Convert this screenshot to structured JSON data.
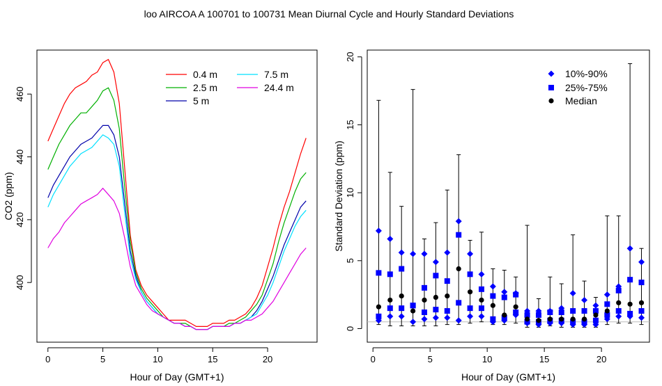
{
  "title": "loo   AIRCOA A   100701 to 100731   Mean Diurnal Cycle and Hourly Standard Deviations",
  "colors": {
    "0.4 m": "#ff0000",
    "2.5 m": "#00b000",
    "5 m": "#0000aa",
    "7.5 m": "#00e0ff",
    "24.4 m": "#e000e0",
    "p10_90": "#0000ff",
    "p25_75": "#0000ff",
    "median": "#000000",
    "reference_line": "#bbbbbb"
  },
  "chart_data": [
    {
      "type": "line",
      "xlabel": "Hour of Day (GMT+1)",
      "ylabel": "CO2 (ppm)",
      "xlim": [
        -1,
        24.5
      ],
      "ylim": [
        381,
        474
      ],
      "xticks": [
        0,
        5,
        10,
        15,
        20
      ],
      "yticks": [
        400,
        420,
        440,
        460
      ],
      "legend_position": "top-right",
      "x": [
        0,
        0.5,
        1,
        1.5,
        2,
        2.5,
        3,
        3.5,
        4,
        4.5,
        5,
        5.5,
        6,
        6.5,
        7,
        7.5,
        8,
        8.5,
        9,
        9.5,
        10,
        10.5,
        11,
        11.5,
        12,
        12.5,
        13,
        13.5,
        14,
        14.5,
        15,
        15.5,
        16,
        16.5,
        17,
        17.5,
        18,
        18.5,
        19,
        19.5,
        20,
        20.5,
        21,
        21.5,
        22,
        22.5,
        23,
        23.5
      ],
      "series": [
        {
          "name": "0.4 m",
          "values": [
            445,
            449,
            453,
            457,
            460,
            462,
            463,
            464,
            466,
            467,
            470,
            471,
            467,
            457,
            436,
            415,
            404,
            399,
            396,
            394,
            392,
            390,
            388,
            388,
            388,
            388,
            387,
            386,
            386,
            386,
            387,
            387,
            387,
            388,
            388,
            389,
            390,
            392,
            395,
            399,
            405,
            411,
            418,
            424,
            429,
            435,
            441,
            446
          ]
        },
        {
          "name": "2.5 m",
          "values": [
            436,
            440,
            444,
            447,
            450,
            452,
            454,
            454,
            456,
            458,
            461,
            462,
            458,
            449,
            430,
            413,
            403,
            398,
            395,
            393,
            391,
            389,
            388,
            387,
            387,
            387,
            386,
            385,
            385,
            385,
            386,
            386,
            386,
            387,
            387,
            388,
            389,
            391,
            393,
            396,
            401,
            406,
            413,
            419,
            424,
            429,
            433,
            435
          ]
        },
        {
          "name": "5 m",
          "values": [
            427,
            431,
            434,
            437,
            440,
            442,
            444,
            445,
            446,
            448,
            450,
            450,
            447,
            440,
            425,
            410,
            402,
            397,
            394,
            392,
            390,
            389,
            388,
            387,
            387,
            386,
            386,
            385,
            385,
            385,
            386,
            386,
            386,
            386,
            387,
            387,
            388,
            389,
            391,
            394,
            398,
            402,
            407,
            412,
            416,
            420,
            424,
            426
          ]
        },
        {
          "name": "7.5 m",
          "values": [
            424,
            428,
            431,
            434,
            437,
            439,
            441,
            442,
            443,
            445,
            447,
            446,
            444,
            437,
            422,
            408,
            401,
            397,
            394,
            392,
            390,
            389,
            388,
            387,
            387,
            386,
            386,
            385,
            385,
            385,
            386,
            386,
            386,
            386,
            387,
            387,
            388,
            389,
            390,
            393,
            396,
            400,
            405,
            410,
            414,
            418,
            421,
            423
          ]
        },
        {
          "name": "24.4 m",
          "values": [
            411,
            414,
            416,
            419,
            421,
            423,
            425,
            426,
            427,
            428,
            430,
            428,
            426,
            422,
            414,
            405,
            399,
            396,
            393,
            391,
            390,
            389,
            388,
            387,
            387,
            386,
            386,
            385,
            385,
            385,
            386,
            386,
            386,
            386,
            387,
            387,
            388,
            388,
            389,
            390,
            392,
            394,
            397,
            400,
            403,
            406,
            409,
            411
          ]
        }
      ]
    },
    {
      "type": "scatter",
      "xlabel": "Hour of Day (GMT+1)",
      "ylabel": "Standard Deviation (ppm)",
      "xlim": [
        -0.5,
        24.2
      ],
      "ylim": [
        -1,
        20.5
      ],
      "xticks": [
        0,
        5,
        10,
        15,
        20
      ],
      "yticks": [
        0,
        5,
        10,
        15,
        20
      ],
      "reference_line_y": 0.5,
      "legend_position": "top-right",
      "x": [
        0.5,
        1.5,
        2.5,
        3.5,
        4.5,
        5.5,
        6.5,
        7.5,
        8.5,
        9.5,
        10.5,
        11.5,
        12.5,
        13.5,
        14.5,
        15.5,
        16.5,
        17.5,
        18.5,
        19.5,
        20.5,
        21.5,
        22.5,
        23.5
      ],
      "series": [
        {
          "name": "10%-90%",
          "marker": "diamond",
          "low": [
            0.6,
            0.9,
            0.9,
            0.5,
            0.7,
            0.8,
            0.8,
            0.6,
            0.9,
            0.9,
            0.5,
            0.6,
            1.0,
            0.4,
            0.3,
            0.4,
            0.4,
            0.3,
            0.3,
            0.3,
            0.7,
            0.9,
            0.9,
            0.8
          ],
          "high": [
            7.2,
            6.6,
            5.6,
            5.5,
            5.5,
            4.9,
            5.6,
            7.9,
            5.5,
            4.0,
            3.1,
            2.7,
            2.6,
            1.3,
            1.3,
            1.3,
            1.5,
            2.6,
            2.1,
            1.7,
            2.5,
            3.1,
            5.9,
            4.9
          ]
        },
        {
          "name": "25%-75%",
          "marker": "square",
          "low": [
            0.9,
            1.5,
            1.5,
            1.7,
            1.2,
            1.4,
            1.3,
            1.9,
            1.5,
            1.5,
            0.7,
            0.8,
            1.2,
            0.5,
            0.5,
            0.6,
            0.6,
            0.5,
            0.5,
            0.6,
            1.0,
            1.3,
            1.1,
            1.3
          ],
          "high": [
            4.1,
            4.0,
            4.4,
            1.7,
            3.0,
            3.9,
            3.5,
            6.9,
            4.0,
            2.9,
            2.4,
            2.3,
            2.5,
            1.0,
            1.0,
            1.2,
            1.2,
            1.3,
            1.3,
            1.3,
            1.8,
            2.8,
            3.6,
            3.4
          ]
        },
        {
          "name": "Median",
          "marker": "circle",
          "values": [
            1.6,
            2.1,
            2.4,
            1.3,
            2.1,
            2.3,
            2.4,
            4.4,
            2.7,
            2.1,
            1.7,
            1.0,
            1.6,
            0.7,
            0.6,
            0.7,
            0.7,
            0.7,
            0.7,
            1.0,
            1.3,
            1.9,
            1.8,
            1.9
          ]
        }
      ],
      "whisker_min": [
        0.3,
        0.2,
        0.2,
        0.2,
        0.2,
        0.2,
        0.3,
        0.3,
        0.4,
        0.5,
        0.3,
        0.3,
        0.4,
        0.1,
        0.1,
        0.2,
        0.1,
        0.1,
        0.1,
        0.1,
        0.3,
        0.4,
        0.4,
        0.3
      ],
      "whisker_max": [
        16.8,
        11.5,
        9.0,
        17.6,
        6.6,
        7.8,
        10.2,
        12.8,
        6.5,
        7.1,
        4.4,
        4.3,
        3.8,
        7.6,
        2.2,
        3.8,
        3.3,
        6.9,
        3.5,
        2.3,
        8.3,
        8.3,
        19.5,
        5.9
      ]
    }
  ]
}
